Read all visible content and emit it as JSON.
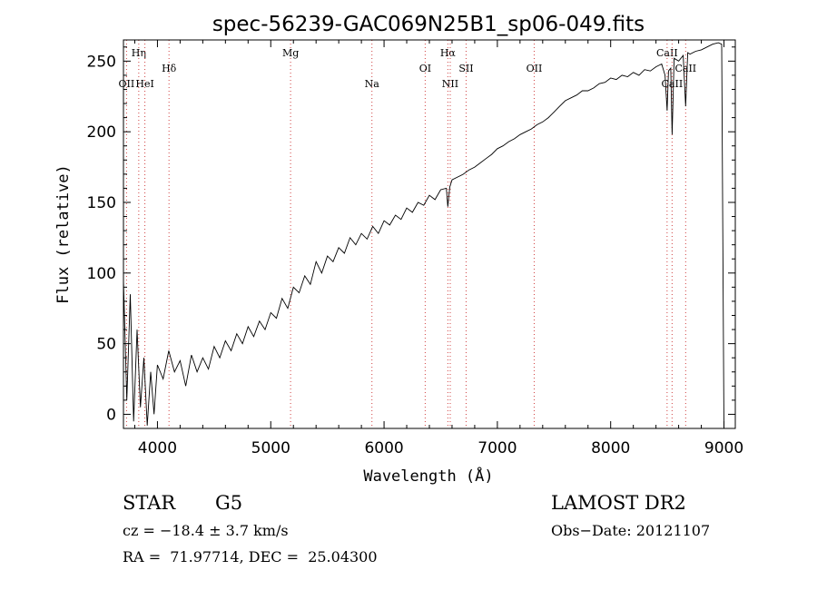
{
  "chart_data": {
    "type": "line",
    "title": "spec-56239-GAC069N25B1_sp06-049.fits",
    "xlabel": "Wavelength (Å)",
    "ylabel": "Flux (relative)",
    "xlim": [
      3700,
      9100
    ],
    "ylim": [
      -10,
      265
    ],
    "xticks": [
      4000,
      5000,
      6000,
      7000,
      8000,
      9000
    ],
    "xtick_labels": [
      "4000",
      "5000",
      "6000",
      "7000",
      "8000",
      "9000"
    ],
    "yticks": [
      0,
      50,
      100,
      150,
      200,
      250
    ],
    "ytick_labels": [
      "0",
      "50",
      "100",
      "150",
      "200",
      "250"
    ],
    "grid": false,
    "series": [
      {
        "x": [
          3700,
          3730,
          3760,
          3790,
          3820,
          3850,
          3880,
          3910,
          3940,
          3970,
          4000,
          4050,
          4100,
          4150,
          4200,
          4250,
          4300,
          4350,
          4400,
          4450,
          4500,
          4550,
          4600,
          4650,
          4700,
          4750,
          4800,
          4850,
          4900,
          4950,
          5000,
          5050,
          5100,
          5150,
          5200,
          5250,
          5300,
          5350,
          5400,
          5450,
          5500,
          5550,
          5600,
          5650,
          5700,
          5750,
          5800,
          5850,
          5900,
          5950,
          6000,
          6050,
          6100,
          6150,
          6200,
          6250,
          6300,
          6350,
          6400,
          6450,
          6500,
          6550,
          6563,
          6580,
          6600,
          6650,
          6700,
          6750,
          6800,
          6850,
          6900,
          6950,
          7000,
          7050,
          7100,
          7150,
          7200,
          7250,
          7300,
          7350,
          7400,
          7450,
          7500,
          7550,
          7600,
          7650,
          7700,
          7750,
          7800,
          7850,
          7900,
          7950,
          8000,
          8050,
          8100,
          8150,
          8200,
          8250,
          8300,
          8350,
          8400,
          8450,
          8480,
          8498,
          8510,
          8530,
          8542,
          8560,
          8600,
          8640,
          8662,
          8680,
          8700,
          8750,
          8800,
          8850,
          8900,
          8950,
          8980,
          9000
        ],
        "y": [
          95,
          10,
          85,
          -5,
          60,
          5,
          40,
          -8,
          30,
          0,
          35,
          25,
          45,
          30,
          38,
          20,
          42,
          30,
          40,
          32,
          48,
          40,
          52,
          45,
          57,
          50,
          62,
          55,
          66,
          60,
          72,
          68,
          82,
          75,
          90,
          86,
          98,
          92,
          108,
          100,
          112,
          108,
          118,
          114,
          125,
          120,
          128,
          124,
          133,
          128,
          137,
          134,
          141,
          138,
          146,
          143,
          150,
          148,
          155,
          152,
          159,
          160,
          147,
          161,
          166,
          168,
          170,
          173,
          175,
          178,
          181,
          184,
          188,
          190,
          193,
          195,
          198,
          200,
          202,
          205,
          207,
          210,
          214,
          218,
          222,
          224,
          226,
          229,
          229,
          231,
          234,
          235,
          238,
          237,
          240,
          239,
          242,
          240,
          244,
          243,
          246,
          248,
          240,
          215,
          243,
          245,
          198,
          252,
          250,
          254,
          218,
          256,
          255,
          257,
          258,
          260,
          262,
          263,
          262,
          -10
        ]
      }
    ],
    "annotations": [
      {
        "label": "OII",
        "x": 3727,
        "row": "lower"
      },
      {
        "label": "Hη",
        "x": 3835,
        "row": "upper"
      },
      {
        "label": "HeI",
        "x": 3889,
        "row": "lower"
      },
      {
        "label": "Hδ",
        "x": 4102,
        "row": "middle"
      },
      {
        "label": "Mg",
        "x": 5175,
        "row": "upper"
      },
      {
        "label": "Na",
        "x": 5893,
        "row": "lower"
      },
      {
        "label": "OI",
        "x": 6363,
        "row": "middle"
      },
      {
        "label": "Hα",
        "x": 6563,
        "row": "upper"
      },
      {
        "label": "NII",
        "x": 6584,
        "row": "lower"
      },
      {
        "label": "SII",
        "x": 6724,
        "row": "middle"
      },
      {
        "label": "OII",
        "x": 7325,
        "row": "middle"
      },
      {
        "label": "CaII",
        "x": 8498,
        "row": "upper"
      },
      {
        "label": "CaII",
        "x": 8542,
        "row": "lower"
      },
      {
        "label": "CaII",
        "x": 8662,
        "row": "middle"
      }
    ]
  },
  "info": {
    "object_class": "STAR",
    "subclass": "G5",
    "survey": "LAMOST DR2",
    "redshift": "cz = −18.4 ± 3.7 km/s",
    "obs_date": "Obs−Date: 20121107",
    "coords": "RA =  71.97714, DEC =  25.04300"
  }
}
